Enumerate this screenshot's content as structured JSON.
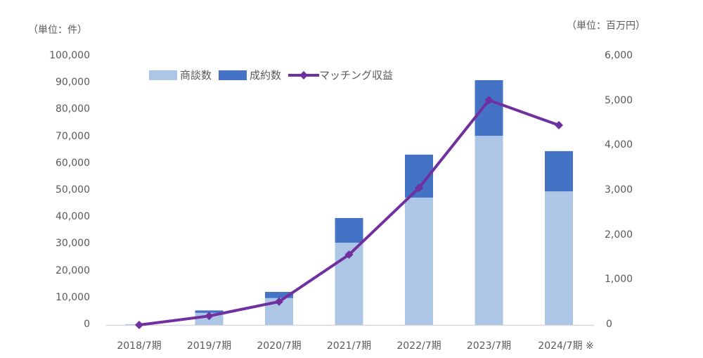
{
  "chart_data": {
    "type": "bar+line",
    "title": "",
    "categories": [
      "2018/7期",
      "2019/7期",
      "2020/7期",
      "2021/7期",
      "2022/7期",
      "2023/7期",
      "2024/7期 ※"
    ],
    "series": [
      {
        "name": "商談数",
        "type": "stacked-bar",
        "axis": "left",
        "color": "#AEC6E6",
        "values": [
          300,
          4500,
          10000,
          30600,
          47400,
          70400,
          49700
        ]
      },
      {
        "name": "成約数",
        "type": "stacked-bar",
        "axis": "left",
        "color": "#4472C4",
        "values": [
          0,
          900,
          2300,
          9200,
          16000,
          20700,
          15000
        ]
      },
      {
        "name": "マッチング収益",
        "type": "line",
        "axis": "right",
        "color": "#7030A0",
        "marker": "diamond",
        "values": [
          0,
          200,
          520,
          1570,
          3060,
          5020,
          4460
        ]
      }
    ],
    "left_axis": {
      "unit_label": "（単位：件）",
      "ylim": [
        0,
        100000
      ],
      "ticks": [
        "0",
        "10,000",
        "20,000",
        "30,000",
        "40,000",
        "50,000",
        "60,000",
        "70,000",
        "80,000",
        "90,000",
        "100,000"
      ]
    },
    "right_axis": {
      "unit_label": "（単位：百万円）",
      "ylim": [
        0,
        6000
      ],
      "ticks": [
        "0",
        "1,000",
        "2,000",
        "3,000",
        "4,000",
        "5,000",
        "6,000"
      ]
    },
    "legend": {
      "position": "top-inside",
      "entries": [
        "商談数",
        "成約数",
        "マッチング収益"
      ]
    },
    "grid": false,
    "xlabel": "",
    "ylabel": ""
  }
}
